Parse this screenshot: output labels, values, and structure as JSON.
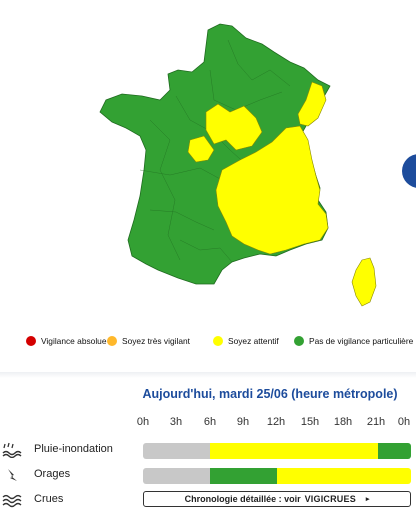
{
  "colors": {
    "green": "#33a133",
    "yellow": "#ffff00",
    "orange": "#ffb82b",
    "red": "#e30613",
    "grey": "#c8c8c8",
    "accent": "#1d4c9c"
  },
  "map": {
    "mainland_level": "Pas de vigilance particulière",
    "highlight_level": "Soyez attentif"
  },
  "legend": [
    {
      "label": "Vigilance absolue",
      "color": "#d40000"
    },
    {
      "label": "Soyez très vigilant",
      "color": "#ffb82b"
    },
    {
      "label": "Soyez attentif",
      "color": "#ffff00"
    },
    {
      "label": "Pas de vigilance particulière",
      "color": "#33a133"
    }
  ],
  "timeline": {
    "title": "Aujourd'hui, mardi 25/06 (heure métropole)",
    "hours": [
      "0h",
      "3h",
      "6h",
      "9h",
      "12h",
      "15h",
      "18h",
      "21h",
      "0h"
    ],
    "rows": [
      {
        "label": "Pluie-inondation",
        "icon": "rain-flood-icon",
        "segments": [
          {
            "from_h": 0,
            "to_h": 6,
            "color": "#c8c8c8"
          },
          {
            "from_h": 6,
            "to_h": 21,
            "color": "#ffff00"
          },
          {
            "from_h": 21,
            "to_h": 24,
            "color": "#33a133"
          }
        ]
      },
      {
        "label": "Orages",
        "icon": "lightning-icon",
        "segments": [
          {
            "from_h": 0,
            "to_h": 6,
            "color": "#c8c8c8"
          },
          {
            "from_h": 6,
            "to_h": 12,
            "color": "#33a133"
          },
          {
            "from_h": 12,
            "to_h": 24,
            "color": "#ffff00"
          }
        ]
      },
      {
        "label": "Crues",
        "icon": "waves-icon"
      }
    ],
    "chrono_text": "Chronologie détaillée : voir",
    "vigicrues_text": "VIGICRUES",
    "chrono_arrow": "▸"
  }
}
